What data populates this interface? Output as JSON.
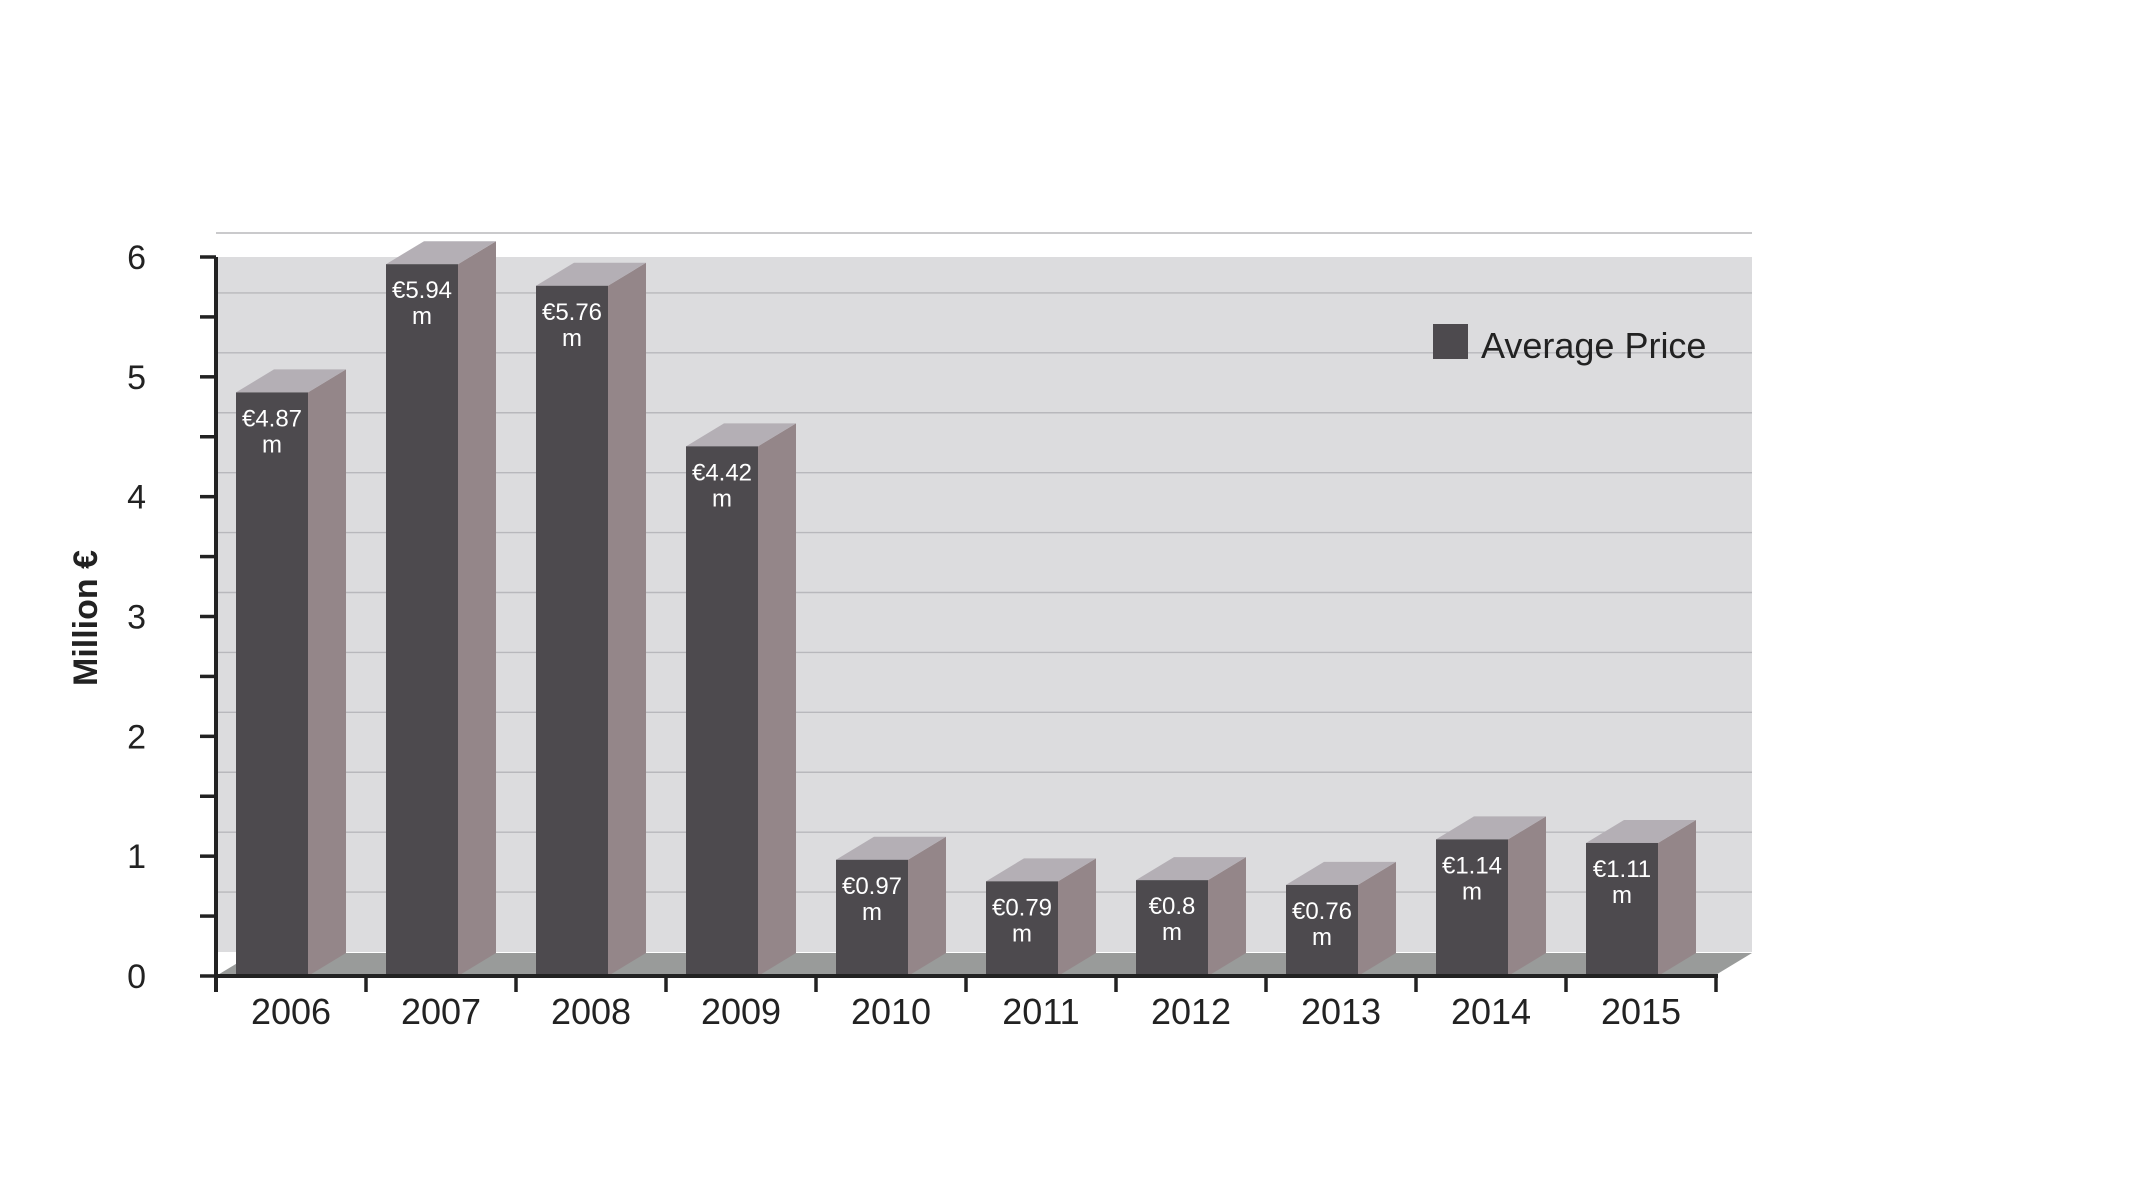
{
  "chart_data": {
    "type": "bar",
    "categories": [
      "2006",
      "2007",
      "2008",
      "2009",
      "2010",
      "2011",
      "2012",
      "2013",
      "2014",
      "2015"
    ],
    "series": [
      {
        "name": "Average Price",
        "values": [
          4.87,
          5.94,
          5.76,
          4.42,
          0.97,
          0.79,
          0.8,
          0.76,
          1.14,
          1.11
        ]
      }
    ],
    "data_labels": [
      [
        "€4.87",
        "m"
      ],
      [
        "€5.94",
        "m"
      ],
      [
        "€5.76",
        "m"
      ],
      [
        "€4.42",
        "m"
      ],
      [
        "€0.97",
        "m"
      ],
      [
        "€0.79",
        "m"
      ],
      [
        "€0.8",
        "m"
      ],
      [
        "€0.76",
        "m"
      ],
      [
        "€1.14",
        "m"
      ],
      [
        "€1.11",
        "m"
      ]
    ],
    "ylabel": "Million €",
    "ylim": [
      0,
      6
    ],
    "y_ticks": [
      "0",
      "1",
      "2",
      "3",
      "4",
      "5",
      "6"
    ],
    "grid": true,
    "legend_position": "top-right",
    "three_d": true,
    "colors": {
      "bar_front": "#4d4a4e",
      "bar_side": "#948689",
      "bar_top": "#b4afb5",
      "plot_background": "#dcdcde",
      "floor": "#999b9a",
      "gridline": "#b8b8bc",
      "axis": "#222222"
    }
  }
}
